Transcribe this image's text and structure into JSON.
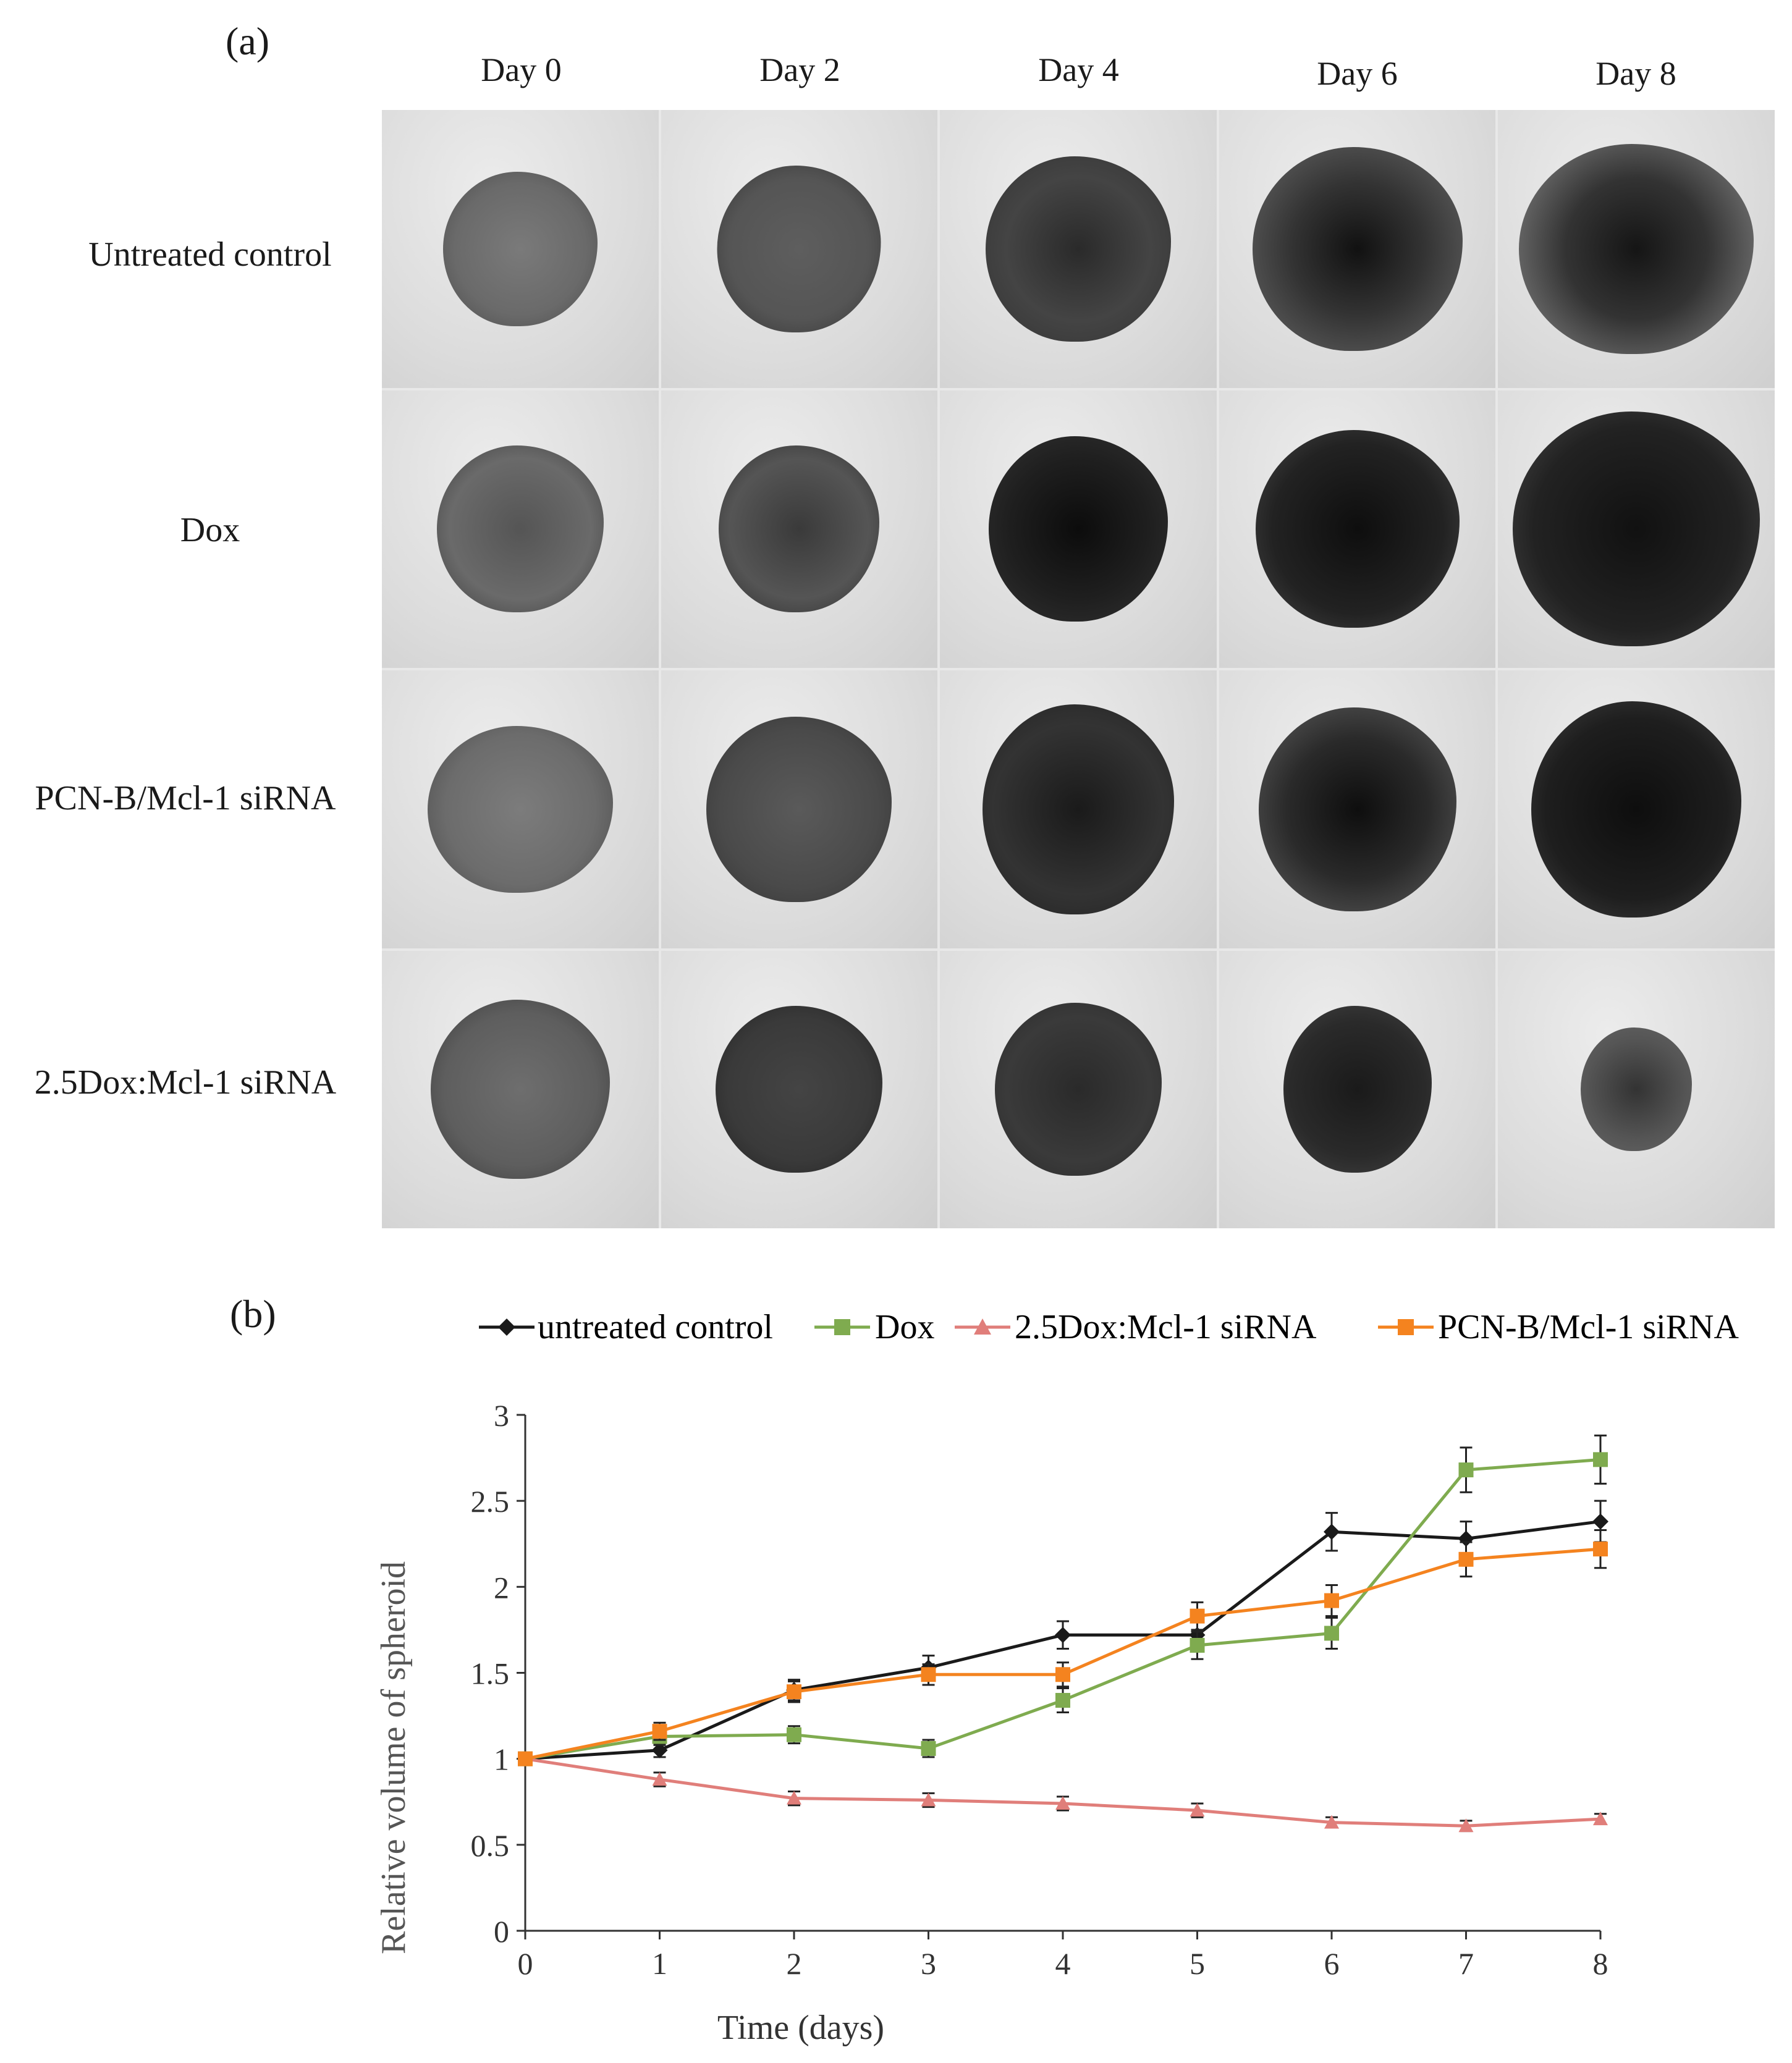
{
  "panel_a": {
    "label": "(a)",
    "columns": [
      "Day 0",
      "Day 2",
      "Day 4",
      "Day 6",
      "Day 8"
    ],
    "rows": [
      "Untreated control",
      "Dox",
      "PCN-B/Mcl-1  siRNA",
      "2.5Dox:Mcl-1  siRNA"
    ]
  },
  "panel_b": {
    "label": "(b)"
  },
  "colors": {
    "untreated": "#1a1a1a",
    "dox": "#7fab4f",
    "combo": "#e07e7a",
    "pcn": "#f4831f"
  },
  "chart_data": {
    "type": "line",
    "xlabel": "Time (days)",
    "ylabel": "Relative volume of spheroid",
    "xlim": [
      0,
      8
    ],
    "ylim": [
      0,
      3
    ],
    "xticks": [
      0,
      1,
      2,
      3,
      4,
      5,
      6,
      7,
      8
    ],
    "yticks": [
      0,
      0.5,
      1,
      1.5,
      2,
      2.5,
      3
    ],
    "ytick_labels": [
      "0",
      "0.5",
      "1",
      "1.5",
      "2",
      "2.5",
      "3"
    ],
    "legend_position": "top",
    "x": [
      0,
      1,
      2,
      3,
      4,
      5,
      6,
      7,
      8
    ],
    "series": [
      {
        "name": "untreated control",
        "marker": "diamond",
        "color": "#1a1a1a",
        "values": [
          1.0,
          1.05,
          1.4,
          1.53,
          1.72,
          1.72,
          2.32,
          2.28,
          2.38
        ],
        "errors": [
          0.02,
          0.04,
          0.06,
          0.07,
          0.08,
          0.08,
          0.11,
          0.1,
          0.12
        ]
      },
      {
        "name": "Dox",
        "marker": "square",
        "color": "#7fab4f",
        "values": [
          1.0,
          1.13,
          1.14,
          1.06,
          1.34,
          1.66,
          1.73,
          2.68,
          2.74
        ],
        "errors": [
          0.02,
          0.05,
          0.05,
          0.05,
          0.07,
          0.08,
          0.09,
          0.13,
          0.14
        ]
      },
      {
        "name": "2.5Dox:Mcl-1  siRNA",
        "marker": "triangle",
        "color": "#e07e7a",
        "values": [
          1.0,
          0.88,
          0.77,
          0.76,
          0.74,
          0.7,
          0.63,
          0.61,
          0.65
        ],
        "errors": [
          0.02,
          0.04,
          0.04,
          0.04,
          0.04,
          0.04,
          0.03,
          0.03,
          0.03
        ]
      },
      {
        "name": "PCN-B/Mcl-1  siRNA",
        "marker": "square",
        "color": "#f4831f",
        "values": [
          1.0,
          1.16,
          1.39,
          1.49,
          1.49,
          1.83,
          1.92,
          2.16,
          2.22
        ],
        "errors": [
          0.02,
          0.05,
          0.06,
          0.06,
          0.07,
          0.08,
          0.09,
          0.1,
          0.11
        ]
      }
    ]
  }
}
